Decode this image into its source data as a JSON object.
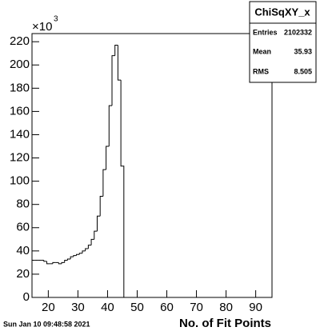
{
  "chart_data": {
    "type": "histogram",
    "title": "ChiSqXY_x",
    "stats": {
      "entries_label": "Entries",
      "entries": "2102332",
      "mean_label": "Mean",
      "mean": "35.93",
      "rms_label": "RMS",
      "rms": "8.505"
    },
    "xlabel": "No. of Fit Points",
    "y_multiplier": "×10",
    "y_multiplier_exponent": "3",
    "timestamp": "Sun Jan 10 09:48:58 2021",
    "bins": [
      14.5,
      15.5,
      16.5,
      17.5,
      18.5,
      19.5,
      20.5,
      21.5,
      22.5,
      23.5,
      24.5,
      25.5,
      26.5,
      27.5,
      28.5,
      29.5,
      30.5,
      31.5,
      32.5,
      33.5,
      34.5,
      35.5,
      36.5,
      37.5,
      38.5,
      39.5,
      40.5,
      41.5,
      42.5,
      43.5,
      44.5,
      45.5
    ],
    "values": [
      32,
      32,
      32,
      32,
      31,
      29,
      29,
      30,
      30,
      29,
      30,
      32,
      33,
      35,
      36,
      37,
      38,
      40,
      42,
      45,
      50,
      57,
      70,
      87,
      110,
      130,
      165,
      208,
      217,
      187,
      113
    ],
    "color": "#000000",
    "xlim": [
      14.5,
      95.5
    ],
    "xticks": [
      20,
      30,
      40,
      50,
      60,
      70,
      80,
      90
    ],
    "ylim": [
      0,
      227
    ],
    "yticks": [
      0,
      20,
      40,
      60,
      80,
      100,
      120,
      140,
      160,
      180,
      200,
      220
    ]
  }
}
